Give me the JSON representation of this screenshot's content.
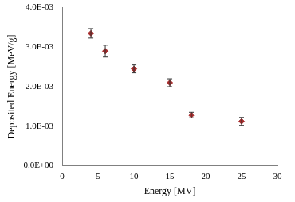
{
  "chart_data": {
    "type": "scatter",
    "x_label": "Energy [MV]",
    "y_label": "Deposited Energy [MeV/g]",
    "x": [
      4,
      6,
      10,
      15,
      18,
      25
    ],
    "values": [
      0.00335,
      0.0029,
      0.00245,
      0.0021,
      0.00128,
      0.00112
    ],
    "errors": [
      0.00012,
      0.00015,
      0.0001,
      0.0001,
      7e-05,
      0.0001
    ],
    "color": "#a52a2a",
    "marker": "diamond",
    "xlim": [
      0,
      30
    ],
    "xticks": [
      0,
      5,
      10,
      15,
      20,
      25,
      30
    ],
    "ylim": [
      0,
      0.004
    ],
    "yticks": [
      {
        "value": 0,
        "label": "0.0E+00"
      },
      {
        "value": 0.001,
        "label": "1.0E-03"
      },
      {
        "value": 0.002,
        "label": "2.0E-03"
      },
      {
        "value": 0.003,
        "label": "3.0E-03"
      },
      {
        "value": 0.004,
        "label": "4.0E-03"
      }
    ],
    "grid": false
  }
}
